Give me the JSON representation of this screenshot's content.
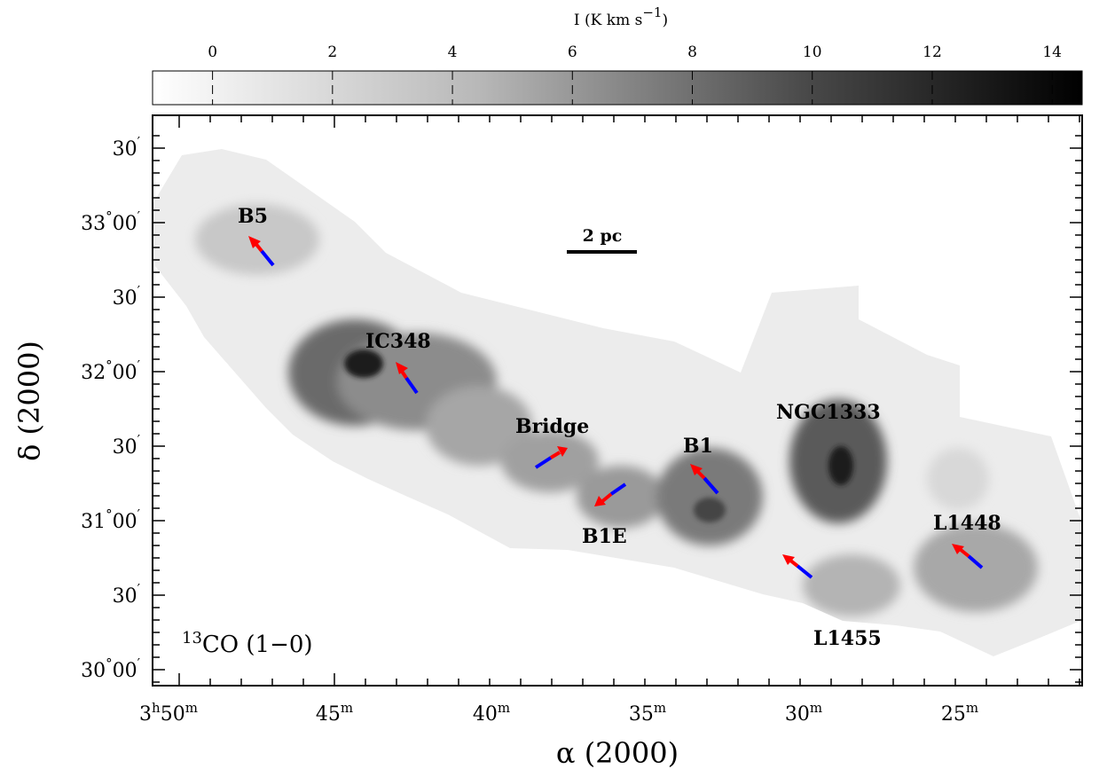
{
  "colorbar": {
    "label": "I (K km s",
    "label_exp": "−1",
    "label_close": ")",
    "ticks": [
      "0",
      "2",
      "4",
      "6",
      "8",
      "10",
      "12",
      "14"
    ],
    "min": -1,
    "max": 14.5,
    "colors": {
      "low": "#ffffff",
      "high": "#000000"
    }
  },
  "axes": {
    "xlabel_symbol": "α",
    "xlabel_rest": " (2000)",
    "ylabel_symbol": "δ",
    "ylabel_rest": " (2000)",
    "x_ticks": [
      {
        "h": "3",
        "hsup": "h",
        "m": "50",
        "msup": "m"
      },
      {
        "m": "45",
        "msup": "m"
      },
      {
        "m": "40",
        "msup": "m"
      },
      {
        "m": "35",
        "msup": "m"
      },
      {
        "m": "30",
        "msup": "m"
      },
      {
        "m": "25",
        "msup": "m"
      }
    ],
    "y_ticks": [
      {
        "deg": "",
        "min": "30",
        "prime": "′"
      },
      {
        "deg": "33",
        "min": "00",
        "prime": "′"
      },
      {
        "deg": "",
        "min": "30",
        "prime": "′"
      },
      {
        "deg": "32",
        "min": "00",
        "prime": "′"
      },
      {
        "deg": "",
        "min": "30",
        "prime": "′"
      },
      {
        "deg": "31",
        "min": "00",
        "prime": "′"
      },
      {
        "deg": "",
        "min": "30",
        "prime": "′"
      },
      {
        "deg": "30",
        "min": "00",
        "prime": "′"
      }
    ]
  },
  "regions": [
    "B5",
    "IC348",
    "Bridge",
    "B1",
    "NGC1333",
    "B1E",
    "L1448",
    "L1455"
  ],
  "scalebar": {
    "label": "2 pc"
  },
  "molecule": {
    "sup": "13",
    "text": "CO (1−0)"
  },
  "arrow_colors": {
    "red": "#ff0000",
    "blue": "#0000ff"
  }
}
